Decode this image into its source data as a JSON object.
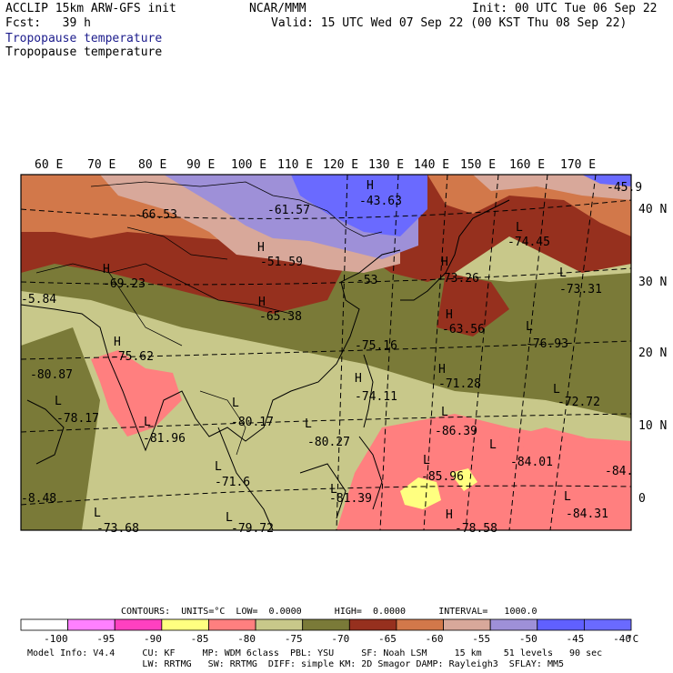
{
  "header": {
    "model": "ACCLIP 15km ARW-GFS init",
    "fcst": "Fcst:   39 h",
    "center": "NCAR/MMM",
    "init": "Init: 00 UTC Tue 06 Sep 22",
    "valid": "Valid: 15 UTC Wed 07 Sep 22 (00 KST Thu 08 Sep 22)",
    "field_title_blue": "Tropopause temperature",
    "field_title": "Tropopause temperature"
  },
  "map": {
    "lon_labels": [
      "60 E",
      "70 E",
      "80 E",
      "90 E",
      "100 E",
      "110 E",
      "120 E",
      "130 E",
      "140 E",
      "150 E",
      "160 E",
      "170 E"
    ],
    "lat_labels": [
      "40 N",
      "30 N",
      "20 N",
      "10 N",
      "0"
    ],
    "centers": [
      {
        "type": "H",
        "value": "-43.63"
      },
      {
        "type": "",
        "value": "-45.9"
      },
      {
        "type": "",
        "value": "-66.53"
      },
      {
        "type": "",
        "value": "-61.57"
      },
      {
        "type": "L",
        "value": "-74.45"
      },
      {
        "type": "H",
        "value": "-51.59"
      },
      {
        "type": "H",
        "value": "-69.23"
      },
      {
        "type": "",
        "value": "-53"
      },
      {
        "type": "H",
        "value": "-73.26"
      },
      {
        "type": "L",
        "value": "-73.31"
      },
      {
        "type": "",
        "value": "-5.84"
      },
      {
        "type": "H",
        "value": "-65.38"
      },
      {
        "type": "H",
        "value": "-63.56"
      },
      {
        "type": "H",
        "value": "-75.62"
      },
      {
        "type": "",
        "value": "-75.16"
      },
      {
        "type": "L",
        "value": "-76.93"
      },
      {
        "type": "",
        "value": "-80.87"
      },
      {
        "type": "H",
        "value": "-74.11"
      },
      {
        "type": "H",
        "value": "-71.28"
      },
      {
        "type": "L",
        "value": "-72.72"
      },
      {
        "type": "L",
        "value": "-78.17"
      },
      {
        "type": "L",
        "value": "-80.17"
      },
      {
        "type": "L",
        "value": "-86.39"
      },
      {
        "type": "L",
        "value": "-81.96"
      },
      {
        "type": "L",
        "value": "-80.27"
      },
      {
        "type": "L",
        "value": "-84.01"
      },
      {
        "type": "L",
        "value": "-71.6"
      },
      {
        "type": "L",
        "value": "-85.96"
      },
      {
        "type": "",
        "value": "-84."
      },
      {
        "type": "",
        "value": "-8.48"
      },
      {
        "type": "L",
        "value": "-81.39"
      },
      {
        "type": "L",
        "value": "-84.31"
      },
      {
        "type": "L",
        "value": "-73.68"
      },
      {
        "type": "L",
        "value": "-79.72"
      },
      {
        "type": "H",
        "value": "-78.58"
      }
    ]
  },
  "contours": {
    "line": "CONTOURS:  UNITS=°C  LOW=  0.0000      HIGH=  0.0000      INTERVAL=   1000.0"
  },
  "colorbar": {
    "colors": [
      "#ffffff",
      "#ff80ff",
      "#ff40c0",
      "#ffff80",
      "#ff7f7f",
      "#c8c88a",
      "#7a7a38",
      "#96301e",
      "#d2784a",
      "#d8a89a",
      "#9e90d8",
      "#6060ff",
      "#6a6aff"
    ],
    "labels": [
      "-100",
      "-95",
      "-90",
      "-85",
      "-80",
      "-75",
      "-70",
      "-65",
      "-60",
      "-55",
      "-50",
      "-45",
      "-40"
    ],
    "unit": "°C"
  },
  "footer": {
    "line1": "Model Info: V4.4     CU: KF     MP: WDM 6class  PBL: YSU     SF: Noah LSM     15 km    51 levels   90 sec",
    "line2": "                     LW: RRTMG   SW: RRTMG  DIFF: simple KM: 2D Smagor DAMP: Rayleigh3  SFLAY: MM5"
  }
}
